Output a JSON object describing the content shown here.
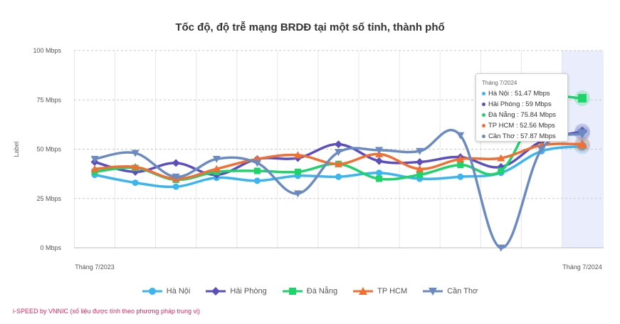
{
  "chart_data": {
    "type": "line",
    "title": "Tốc độ, độ trễ mạng BRDĐ tại một số tỉnh, thành phố",
    "ylabel": "Label",
    "xlabel": "",
    "ylim": [
      0,
      100
    ],
    "yticks": [
      "0 Mbps",
      "25 Mbps",
      "50 Mbps",
      "75 Mbps",
      "100 Mbps"
    ],
    "ytick_values": [
      0,
      25,
      50,
      75,
      100
    ],
    "categories": [
      "2023-07",
      "2023-08",
      "2023-09",
      "2023-10",
      "2023-11",
      "2023-12",
      "2024-01",
      "2024-02",
      "2024-03",
      "2024-04",
      "2024-05",
      "2024-06",
      "2024-07"
    ],
    "xtick_labels": [
      "Tháng 7/2023",
      "Tháng 7/2024"
    ],
    "highlight_index": 12,
    "series": [
      {
        "name": "Hà Nội",
        "color": "#3bb5ef",
        "marker": "circle",
        "values": [
          37,
          33,
          31,
          35.5,
          34,
          36.5,
          36,
          38,
          35,
          36,
          38,
          49,
          51.47
        ]
      },
      {
        "name": "Hải Phòng",
        "color": "#5b4fc0",
        "marker": "diamond",
        "values": [
          43.5,
          38.5,
          43,
          37,
          45,
          45.5,
          52.5,
          44,
          43.5,
          46,
          41,
          54,
          59
        ]
      },
      {
        "name": "Đà Nẵng",
        "color": "#1fd36b",
        "marker": "square",
        "values": [
          38.5,
          40.5,
          34.5,
          38.5,
          39,
          38.5,
          42.5,
          35,
          37,
          42,
          39,
          73,
          75.84
        ]
      },
      {
        "name": "TP HCM",
        "color": "#f06f33",
        "marker": "triangle-up",
        "values": [
          40,
          41,
          35,
          40,
          45,
          47,
          42.5,
          47.5,
          40,
          45,
          45.5,
          52,
          52.56
        ]
      },
      {
        "name": "Cần Thơ",
        "color": "#6b8bc0",
        "marker": "triangle-down",
        "values": [
          45,
          48,
          36,
          45,
          43,
          27.5,
          48.5,
          49.5,
          49,
          57,
          0,
          50,
          57.87
        ]
      }
    ],
    "tooltip": {
      "header": "Tháng 7/2024",
      "rows": [
        "Hà Nội : 51.47 Mbps",
        "Hải Phòng : 59 Mbps",
        "Đà Nẵng : 75.84 Mbps",
        "TP HCM : 52.56 Mbps",
        "Cần Thơ : 57.87 Mbps"
      ]
    }
  },
  "legend": [
    "Hà Nội",
    "Hải Phòng",
    "Đà Nẵng",
    "TP HCM",
    "Cần Thơ"
  ],
  "footer": "i-SPEED by VNNIC (số liệu được tính theo phương pháp trung vị)"
}
